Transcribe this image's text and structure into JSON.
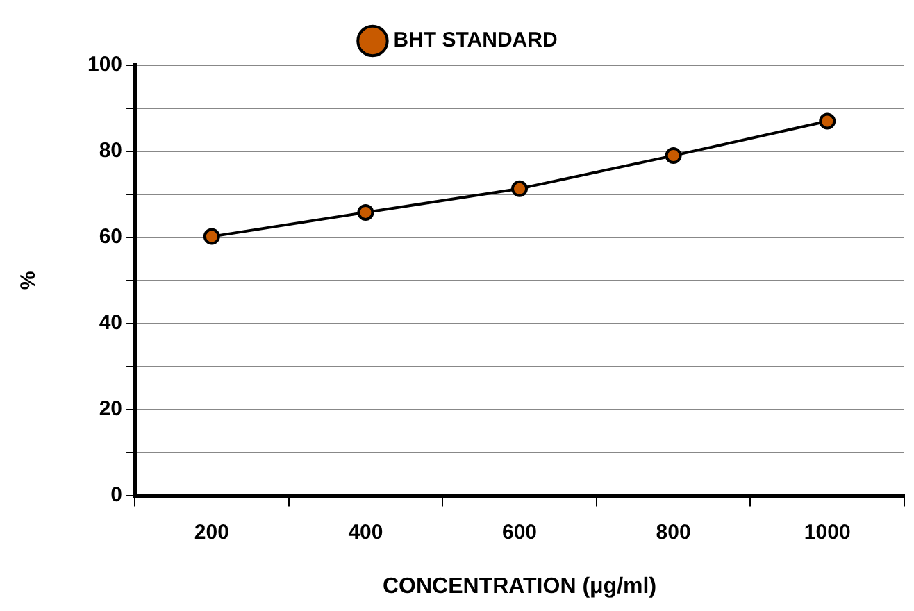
{
  "chart_data": {
    "type": "line",
    "xlabel": "CONCENTRATION (μg/ml)",
    "ylabel": "%",
    "categories": [
      "200",
      "400",
      "600",
      "800",
      "1000"
    ],
    "series": [
      {
        "name": "BHT STANDARD",
        "color": "#000000",
        "values": [
          60.2,
          65.8,
          71.3,
          79,
          87
        ]
      }
    ],
    "ylim": [
      0,
      100
    ],
    "yticks": [
      0,
      {
        "value": 10,
        "label": null
      },
      20,
      {
        "value": 30,
        "label": null
      },
      40,
      {
        "value": 50,
        "label": null
      },
      60,
      {
        "value": 70,
        "label": null
      },
      80,
      {
        "value": 90,
        "label": null
      },
      100
    ],
    "grid": "y",
    "legend": "top",
    "marker": "circle",
    "line_style": "solid"
  }
}
